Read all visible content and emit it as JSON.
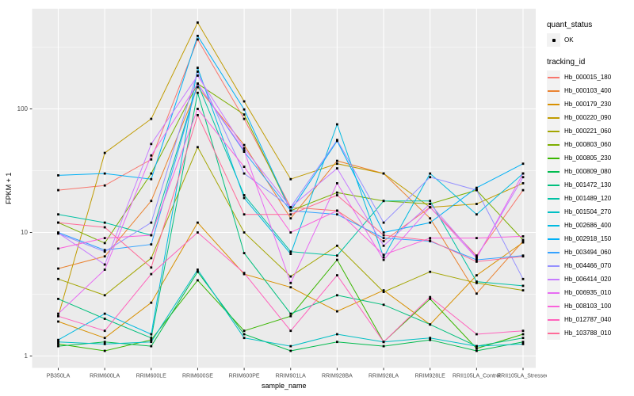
{
  "figure": {
    "background": "#FFFFFF",
    "panel_background": "#EBEBEB",
    "grid_color": "#FFFFFF",
    "tick_color": "#333333",
    "tick_label_color": "#4D4D4D",
    "axis_title_color": "#000000"
  },
  "legend": {
    "quant_status": {
      "title": "quant_status",
      "items": [
        {
          "label": "OK",
          "symbol": "black-point"
        }
      ]
    },
    "tracking_id": {
      "title": "tracking_id"
    }
  },
  "chart_data": {
    "type": "line",
    "title": "",
    "xlabel": "sample_name",
    "ylabel": "FPKM + 1",
    "x_scale": "categorical",
    "y_scale": "log10",
    "grid": "on",
    "legend_position": "right",
    "point_marker": "small black square on every data point",
    "categories": [
      "PB350LA",
      "RRIM600LA",
      "RRIM600LE",
      "RRIM600SE",
      "RRIM600PE",
      "RRIM901LA",
      "RRIM928BA",
      "RRIM928LA",
      "RRIM928LE",
      "RRII105LA_Control",
      "RRII105LA_Stressed"
    ],
    "y_ticks": [
      {
        "value": 1,
        "label": "1"
      },
      {
        "value": 10,
        "label": "10"
      },
      {
        "value": 100,
        "label": "100"
      }
    ],
    "y_minor_ticks": [
      3.162,
      31.62,
      316.2
    ],
    "y_range": [
      0.9,
      630
    ],
    "series": [
      {
        "name": "Hb_000015_180",
        "color": "#F8766D",
        "quant_status": "OK",
        "values": [
          22,
          24,
          39,
          365,
          83,
          16,
          15,
          8.5,
          16,
          6.5,
          22
        ]
      },
      {
        "name": "Hb_000103_400",
        "color": "#EA8331",
        "quant_status": "OK",
        "values": [
          5.1,
          6.4,
          18,
          150,
          51,
          13,
          38,
          30,
          13,
          3.2,
          8.5
        ]
      },
      {
        "name": "Hb_000179_230",
        "color": "#D89000",
        "quant_status": "OK",
        "values": [
          1.9,
          1.4,
          2.7,
          12,
          4.6,
          3.6,
          2.3,
          3.4,
          1.8,
          4.5,
          8.3
        ]
      },
      {
        "name": "Hb_000220_090",
        "color": "#C09B00",
        "quant_status": "OK",
        "values": [
          2.1,
          44,
          83,
          500,
          115,
          27,
          36,
          30,
          16,
          17,
          25
        ]
      },
      {
        "name": "Hb_000221_060",
        "color": "#A3A500",
        "quant_status": "OK",
        "values": [
          4.2,
          3.1,
          6.2,
          49,
          10,
          4.4,
          7.8,
          3.3,
          4.8,
          3.9,
          3.4
        ]
      },
      {
        "name": "Hb_000803_060",
        "color": "#7CAE00",
        "quant_status": "OK",
        "values": [
          12,
          8.2,
          30,
          160,
          90,
          15,
          21,
          18,
          17,
          22,
          8.7
        ]
      },
      {
        "name": "Hb_000805_230",
        "color": "#39B600",
        "quant_status": "OK",
        "values": [
          1.25,
          1.1,
          1.35,
          4.1,
          1.6,
          2.1,
          6.0,
          1.3,
          2.9,
          1.15,
          1.5
        ]
      },
      {
        "name": "Hb_000809_080",
        "color": "#00BB4E",
        "quant_status": "OK",
        "values": [
          1.2,
          1.3,
          1.2,
          4.8,
          1.5,
          1.1,
          1.3,
          1.2,
          1.35,
          1.1,
          1.3
        ]
      },
      {
        "name": "Hb_001472_130",
        "color": "#00BF7D",
        "quant_status": "OK",
        "values": [
          2.9,
          2.0,
          1.4,
          135,
          6.8,
          2.2,
          3.1,
          2.6,
          1.8,
          1.2,
          1.4
        ]
      },
      {
        "name": "Hb_001489_120",
        "color": "#00C1A3",
        "quant_status": "OK",
        "values": [
          14,
          12,
          9.5,
          160,
          20,
          7.0,
          6.5,
          18,
          18,
          4.0,
          3.7
        ]
      },
      {
        "name": "Hb_001504_270",
        "color": "#00BFC4",
        "quant_status": "OK",
        "values": [
          1.3,
          1.25,
          1.3,
          5.0,
          1.4,
          1.2,
          1.5,
          1.3,
          1.4,
          1.2,
          1.25
        ]
      },
      {
        "name": "Hb_002686_400",
        "color": "#00BAE0",
        "quant_status": "OK",
        "values": [
          1.35,
          2.2,
          1.5,
          215,
          19,
          6.7,
          75,
          6.3,
          30,
          14,
          30
        ]
      },
      {
        "name": "Hb_002918_150",
        "color": "#00B0F6",
        "quant_status": "OK",
        "values": [
          29,
          30,
          27,
          390,
          99,
          15,
          55,
          10,
          12,
          23,
          36
        ]
      },
      {
        "name": "Hb_003494_060",
        "color": "#35A2FF",
        "quant_status": "OK",
        "values": [
          10,
          7.2,
          8.0,
          160,
          45,
          15,
          14,
          9.0,
          8.5,
          6.0,
          6.5
        ]
      },
      {
        "name": "Hb_004466_070",
        "color": "#9590FF",
        "quant_status": "OK",
        "values": [
          9.8,
          7.0,
          12,
          200,
          30,
          16,
          56,
          12,
          28,
          22,
          4.2
        ]
      },
      {
        "name": "Hb_006414_020",
        "color": "#C77CFF",
        "quant_status": "OK",
        "values": [
          9.9,
          5.5,
          52,
          186,
          48,
          16,
          33,
          7.8,
          17,
          6.3,
          28
        ]
      },
      {
        "name": "Hb_006935_010",
        "color": "#E76BF3",
        "quant_status": "OK",
        "values": [
          2.2,
          5.0,
          42,
          160,
          46,
          3.9,
          25,
          6.0,
          16,
          6.2,
          30
        ]
      },
      {
        "name": "Hb_008103_100",
        "color": "#FA62DB",
        "quant_status": "OK",
        "values": [
          7.4,
          9.0,
          9.5,
          100,
          34,
          10,
          15,
          6.6,
          9.0,
          9.0,
          9.3
        ]
      },
      {
        "name": "Hb_012787_040",
        "color": "#FF62BC",
        "quant_status": "OK",
        "values": [
          2.1,
          1.6,
          4.6,
          10,
          4.7,
          1.6,
          4.5,
          1.3,
          3.0,
          1.5,
          1.6
        ]
      },
      {
        "name": "Hb_103788_010",
        "color": "#FF6A98",
        "quant_status": "OK",
        "values": [
          12,
          11,
          5.2,
          89,
          14,
          14,
          20,
          9.5,
          8.6,
          5.8,
          6.4
        ]
      }
    ]
  }
}
